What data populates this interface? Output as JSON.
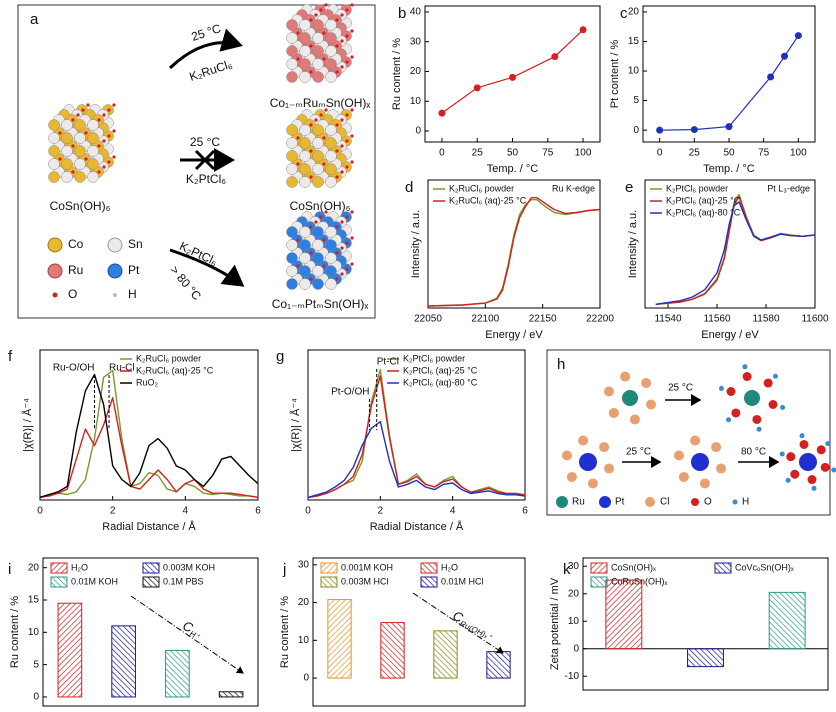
{
  "panel_a": {
    "label": "a",
    "top_condition": "25 °C",
    "top_reagent": "K₂RuCl₆",
    "top_product": "Co₁₋ₘRuₘSn(OH)ₓ",
    "start": "CoSn(OH)₆",
    "mid_condition": "25 °C",
    "mid_reagent": "K₂PtCl₆",
    "mid_product": "CoSn(OH)₆",
    "bottom_reagent": "K₂PtCl₆",
    "bottom_condition": "> 80 °C",
    "bottom_product": "Co₁₋ₘPtₘSn(OH)ₓ",
    "legend": [
      "Co",
      "Sn",
      "Ru",
      "Pt",
      "O",
      "H"
    ]
  },
  "panel_h": {
    "label": "h",
    "conditions": [
      "25 °C",
      "25 °C",
      "80 °C"
    ],
    "legend": [
      "Ru",
      "Pt",
      "Cl",
      "O",
      "H"
    ]
  },
  "chart_data": [
    {
      "panel": "b",
      "type": "line",
      "markers": true,
      "color": "#d42020",
      "xlabel": "Temp. / °C",
      "ylabel": "Ru content / %",
      "x": [
        0,
        25,
        50,
        80,
        100
      ],
      "values": [
        6,
        14.5,
        18,
        25,
        34
      ],
      "xlim": [
        -12,
        112
      ],
      "xticks": [
        0,
        25,
        50,
        75,
        100
      ],
      "ylim": [
        -3.7,
        42
      ],
      "yticks": [
        0,
        10,
        20,
        30,
        40
      ]
    },
    {
      "panel": "c",
      "type": "line",
      "markers": true,
      "color": "#1f2fbf",
      "xlabel": "Temp. / °C",
      "ylabel": "Pt content / %",
      "x": [
        0,
        25,
        50,
        80,
        90,
        100
      ],
      "values": [
        0,
        0.1,
        0.6,
        9,
        12.5,
        16
      ],
      "xlim": [
        -12,
        112
      ],
      "xticks": [
        0,
        25,
        50,
        75,
        100
      ],
      "ylim": [
        -2,
        21
      ],
      "yticks": [
        0,
        5,
        10,
        15,
        20
      ]
    },
    {
      "panel": "d",
      "type": "line",
      "xlabel": "Energy / eV",
      "ylabel": "Intensity / a.u.",
      "annotation": "Ru K-edge",
      "legend": "upper left",
      "x": [
        22050,
        22080,
        22100,
        22110,
        22115,
        22120,
        22125,
        22130,
        22135,
        22140,
        22145,
        22150,
        22160,
        22170,
        22180,
        22190,
        22200
      ],
      "series": [
        {
          "name": "K₂RuCl₆ powder",
          "color": "#7a9a2a",
          "values": [
            0.02,
            0.03,
            0.05,
            0.1,
            0.2,
            0.45,
            0.75,
            0.95,
            1.05,
            1.1,
            1.1,
            1.05,
            0.97,
            0.95,
            0.97,
            0.99,
            1.0
          ]
        },
        {
          "name": "K₂RuCl₆ (aq)-25 °C",
          "color": "#d42020",
          "values": [
            0.02,
            0.03,
            0.05,
            0.09,
            0.18,
            0.42,
            0.72,
            0.92,
            1.03,
            1.12,
            1.12,
            1.08,
            1.0,
            0.96,
            0.97,
            0.99,
            1.0
          ]
        }
      ],
      "xlim": [
        22050,
        22200
      ],
      "xticks": [
        22050,
        22100,
        22150,
        22200
      ],
      "ylim": [
        0,
        1.3
      ]
    },
    {
      "panel": "e",
      "type": "line",
      "xlabel": "Energy / eV",
      "ylabel": "Intensity / a.u.",
      "annotation": "Pt L₃-edge",
      "legend": "upper left",
      "x": [
        11535,
        11545,
        11550,
        11555,
        11560,
        11563,
        11565,
        11567,
        11569,
        11572,
        11575,
        11578,
        11582,
        11586,
        11590,
        11595,
        11600
      ],
      "series": [
        {
          "name": "K₂PtCl₆ powder",
          "color": "#7a9a2a",
          "values": [
            0.05,
            0.08,
            0.12,
            0.2,
            0.4,
            0.7,
            1.1,
            1.45,
            1.55,
            1.25,
            1.0,
            0.93,
            0.97,
            1.02,
            1.0,
            0.98,
            1.0
          ]
        },
        {
          "name": "K₂PtCl₆ (aq)-25 °C",
          "color": "#d42020",
          "values": [
            0.05,
            0.08,
            0.12,
            0.19,
            0.38,
            0.68,
            1.05,
            1.42,
            1.52,
            1.22,
            0.98,
            0.92,
            0.96,
            1.01,
            0.99,
            0.98,
            1.0
          ]
        },
        {
          "name": "K₂PtCl₆ (aq)-80 °C",
          "color": "#2030c0",
          "values": [
            0.05,
            0.1,
            0.15,
            0.25,
            0.48,
            0.8,
            1.15,
            1.4,
            1.45,
            1.2,
            0.98,
            0.93,
            0.97,
            1.01,
            0.99,
            0.98,
            1.0
          ]
        }
      ],
      "xlim": [
        11530.6,
        11600
      ],
      "xticks": [
        11540,
        11560,
        11580,
        11600
      ],
      "ylim": [
        0,
        1.75
      ]
    },
    {
      "panel": "f",
      "type": "line",
      "xlabel": "Radial Distance / Å",
      "ylabel": "|χ(R)| / Å⁻⁴",
      "legend": "upper right",
      "x": [
        0,
        0.25,
        0.5,
        0.75,
        1,
        1.25,
        1.5,
        1.75,
        2,
        2.25,
        2.5,
        2.75,
        3,
        3.25,
        3.5,
        3.75,
        4,
        4.25,
        4.5,
        4.75,
        5,
        5.25,
        5.5,
        5.75,
        6
      ],
      "series": [
        {
          "name": "K₂RuCl₆ powder",
          "color": "#7a9a2a",
          "values": [
            0.02,
            0.03,
            0.05,
            0.04,
            0.06,
            0.15,
            0.45,
            0.9,
            0.95,
            0.45,
            0.1,
            0.12,
            0.2,
            0.18,
            0.08,
            0.06,
            0.12,
            0.1,
            0.05,
            0.04,
            0.05,
            0.04,
            0.03,
            0.03,
            0.02
          ]
        },
        {
          "name": "K₂RuCl₆ (aq)-25 °C",
          "color": "#d42020",
          "values": [
            0.02,
            0.03,
            0.05,
            0.08,
            0.3,
            0.52,
            0.4,
            0.55,
            0.75,
            0.4,
            0.1,
            0.08,
            0.15,
            0.22,
            0.15,
            0.06,
            0.12,
            0.15,
            0.08,
            0.05,
            0.05,
            0.05,
            0.04,
            0.03,
            0.02
          ]
        },
        {
          "name": "RuO₂",
          "color": "#000000",
          "values": [
            0.02,
            0.04,
            0.06,
            0.1,
            0.5,
            0.8,
            0.92,
            0.7,
            0.25,
            0.15,
            0.1,
            0.2,
            0.4,
            0.45,
            0.38,
            0.25,
            0.22,
            0.15,
            0.1,
            0.18,
            0.3,
            0.32,
            0.25,
            0.18,
            0.12
          ]
        }
      ],
      "peaks": [
        {
          "label": "Ru-O/OH",
          "x": 1.5
        },
        {
          "label": "Ru-Cl",
          "x": 1.9
        }
      ],
      "xlim": [
        0,
        6
      ],
      "xticks": [
        0,
        2,
        4,
        6
      ],
      "ylim": [
        0,
        1.1
      ]
    },
    {
      "panel": "g",
      "type": "line",
      "xlabel": "Radial Distance / Å",
      "ylabel": "|χ(R)| / Å⁻⁴",
      "legend": "upper right",
      "x": [
        0,
        0.25,
        0.5,
        0.75,
        1,
        1.25,
        1.5,
        1.75,
        2,
        2.25,
        2.5,
        2.75,
        3,
        3.25,
        3.5,
        3.75,
        4,
        4.25,
        4.5,
        4.75,
        5,
        5.25,
        5.5,
        5.75,
        6
      ],
      "series": [
        {
          "name": "K₂PtCl₆ powder",
          "color": "#7a9a2a",
          "values": [
            0.02,
            0.03,
            0.05,
            0.08,
            0.12,
            0.15,
            0.3,
            0.75,
            1.0,
            0.5,
            0.12,
            0.15,
            0.2,
            0.12,
            0.1,
            0.15,
            0.18,
            0.1,
            0.06,
            0.08,
            0.1,
            0.07,
            0.05,
            0.05,
            0.04
          ]
        },
        {
          "name": "K₂PtCl₆ (aq)-25 °C",
          "color": "#d42020",
          "values": [
            0.02,
            0.03,
            0.05,
            0.08,
            0.12,
            0.18,
            0.35,
            0.72,
            0.95,
            0.48,
            0.12,
            0.14,
            0.18,
            0.12,
            0.1,
            0.14,
            0.16,
            0.1,
            0.06,
            0.07,
            0.09,
            0.06,
            0.05,
            0.05,
            0.04
          ]
        },
        {
          "name": "K₂PtCl₆ (aq)-80 °C",
          "color": "#2030c0",
          "values": [
            0.02,
            0.04,
            0.06,
            0.1,
            0.15,
            0.25,
            0.42,
            0.55,
            0.6,
            0.3,
            0.1,
            0.12,
            0.15,
            0.1,
            0.08,
            0.12,
            0.13,
            0.08,
            0.05,
            0.06,
            0.07,
            0.05,
            0.04,
            0.04,
            0.03
          ]
        }
      ],
      "peaks": [
        {
          "label": "Pt-O/OH",
          "x": 1.7
        },
        {
          "label": "Pt-Cl",
          "x": 1.9
        }
      ],
      "xlim": [
        0,
        6
      ],
      "xticks": [
        0,
        2,
        4,
        6
      ],
      "ylim": [
        0,
        1.15
      ]
    },
    {
      "panel": "i",
      "type": "bar",
      "hatch": true,
      "ylabel": "Ru content / %",
      "trend_label": "C",
      "trend_sub": "H⁺",
      "categories": [
        "H₂O",
        "0.003M KOH",
        "0.01M KOH",
        "0.1M PBS"
      ],
      "values": [
        14.5,
        11,
        7.2,
        0.8
      ],
      "colors": [
        "#d42020",
        "#1a1a8c",
        "#2a9a8a",
        "#111111"
      ],
      "ylim": [
        -1.4,
        21.5
      ],
      "yticks": [
        0,
        5,
        10,
        15,
        20
      ]
    },
    {
      "panel": "j",
      "type": "bar",
      "hatch": true,
      "ylabel": "Ru content / %",
      "trend_label": "C",
      "trend_sub": "Ru(OH)ₓ⁺",
      "categories": [
        "0.001M KOH",
        "H₂O",
        "0.003M HCl",
        "0.01M HCl"
      ],
      "values": [
        20.8,
        14.7,
        12.5,
        7
      ],
      "colors": [
        "#e8922a",
        "#d42020",
        "#8a8a1a",
        "#1a1a8c"
      ],
      "ylim": [
        -7.4,
        31.8
      ],
      "yticks": [
        0,
        10,
        20,
        30
      ]
    },
    {
      "panel": "k",
      "type": "bar",
      "hatch": true,
      "zero_line": true,
      "ylabel": "Zeta potential / mV",
      "categories": [
        "CoSn(OH)ₓ",
        "CoVᴄₒSn(OH)ₓ",
        "CoRuSn(OH)ₓ"
      ],
      "values": [
        25,
        -6.5,
        20.5
      ],
      "colors": [
        "#d42020",
        "#1a1a8c",
        "#2a9a8a"
      ],
      "ylim": [
        -15,
        33
      ],
      "yticks": [
        -10,
        0,
        10,
        20,
        30
      ]
    }
  ]
}
